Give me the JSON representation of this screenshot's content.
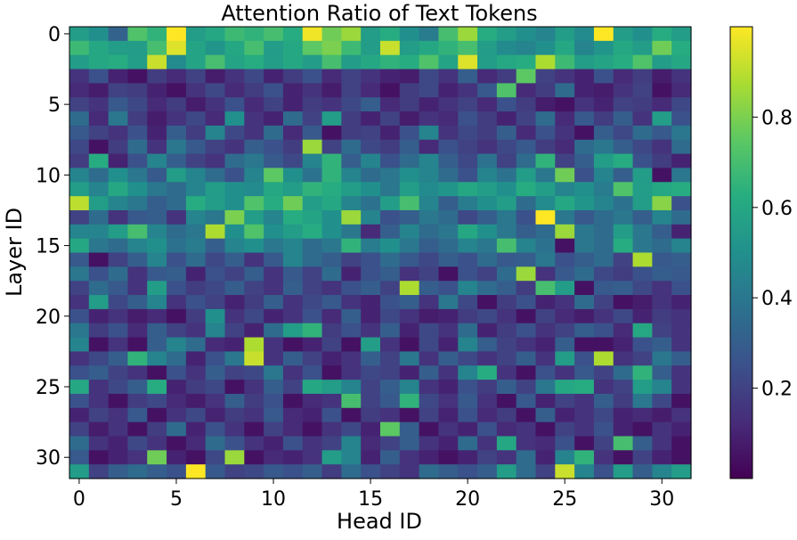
{
  "chart_data": {
    "type": "heatmap",
    "title": "Attention Ratio of Text Tokens",
    "xlabel": "Head ID",
    "ylabel": "Layer ID",
    "xticks": [
      0,
      5,
      10,
      15,
      20,
      25,
      30
    ],
    "yticks": [
      0,
      5,
      10,
      15,
      20,
      25,
      30
    ],
    "n_heads": 32,
    "n_layers": 32,
    "colormap": "viridis",
    "colorbar_ticks": [
      "0.2",
      "0.4",
      "0.6",
      "0.8"
    ],
    "colorbar_values": [
      0.2,
      0.4,
      0.6,
      0.8
    ],
    "vmin": 0.0,
    "vmax": 1.0,
    "values": [
      [
        0.55,
        0.5,
        0.32,
        0.72,
        0.65,
        1.0,
        0.55,
        0.6,
        0.68,
        0.65,
        0.7,
        0.62,
        0.98,
        0.78,
        0.85,
        0.55,
        0.62,
        0.5,
        0.42,
        0.7,
        0.85,
        0.62,
        0.55,
        0.5,
        0.45,
        0.55,
        0.48,
        1.0,
        0.55,
        0.5,
        0.62,
        0.55
      ],
      [
        0.68,
        0.6,
        0.55,
        0.55,
        0.7,
        0.95,
        0.58,
        0.52,
        0.6,
        0.7,
        0.55,
        0.6,
        0.75,
        0.8,
        0.68,
        0.55,
        0.92,
        0.55,
        0.6,
        0.65,
        0.7,
        0.55,
        0.48,
        0.45,
        0.5,
        0.6,
        0.45,
        0.52,
        0.6,
        0.55,
        0.78,
        0.62
      ],
      [
        0.55,
        0.6,
        0.62,
        0.55,
        0.92,
        0.48,
        0.58,
        0.7,
        0.58,
        0.62,
        0.55,
        0.6,
        0.55,
        0.7,
        0.55,
        0.6,
        0.65,
        0.62,
        0.72,
        0.58,
        0.95,
        0.55,
        0.6,
        0.62,
        0.88,
        0.68,
        0.55,
        0.58,
        0.62,
        0.72,
        0.55,
        0.6
      ],
      [
        0.15,
        0.25,
        0.1,
        0.05,
        0.18,
        0.12,
        0.2,
        0.08,
        0.15,
        0.22,
        0.1,
        0.18,
        0.25,
        0.12,
        0.2,
        0.15,
        0.1,
        0.08,
        0.22,
        0.15,
        0.3,
        0.12,
        0.18,
        0.75,
        0.2,
        0.15,
        0.1,
        0.25,
        0.12,
        0.18,
        0.08,
        0.15
      ],
      [
        0.12,
        0.08,
        0.2,
        0.18,
        0.1,
        0.05,
        0.15,
        0.22,
        0.12,
        0.18,
        0.25,
        0.1,
        0.15,
        0.08,
        0.2,
        0.12,
        0.05,
        0.18,
        0.22,
        0.1,
        0.15,
        0.28,
        0.72,
        0.12,
        0.18,
        0.35,
        0.1,
        0.08,
        0.15,
        0.2,
        0.05,
        0.12
      ],
      [
        0.2,
        0.15,
        0.28,
        0.22,
        0.12,
        0.18,
        0.08,
        0.15,
        0.25,
        0.12,
        0.2,
        0.1,
        0.18,
        0.15,
        0.22,
        0.3,
        0.12,
        0.18,
        0.1,
        0.15,
        0.2,
        0.12,
        0.25,
        0.18,
        0.08,
        0.05,
        0.15,
        0.1,
        0.2,
        0.18,
        0.12,
        0.22
      ],
      [
        0.35,
        0.12,
        0.4,
        0.18,
        0.08,
        0.15,
        0.22,
        0.12,
        0.5,
        0.15,
        0.1,
        0.35,
        0.2,
        0.55,
        0.18,
        0.1,
        0.2,
        0.08,
        0.15,
        0.12,
        0.25,
        0.18,
        0.1,
        0.2,
        0.35,
        0.12,
        0.28,
        0.18,
        0.3,
        0.15,
        0.55,
        0.25
      ],
      [
        0.28,
        0.2,
        0.15,
        0.25,
        0.1,
        0.3,
        0.18,
        0.45,
        0.22,
        0.15,
        0.35,
        0.12,
        0.28,
        0.05,
        0.18,
        0.2,
        0.1,
        0.25,
        0.45,
        0.15,
        0.22,
        0.18,
        0.3,
        0.12,
        0.25,
        0.15,
        0.05,
        0.3,
        0.22,
        0.35,
        0.28,
        0.4
      ],
      [
        0.22,
        0.05,
        0.18,
        0.35,
        0.15,
        0.4,
        0.28,
        0.2,
        0.15,
        0.3,
        0.25,
        0.18,
        0.85,
        0.2,
        0.35,
        0.22,
        0.18,
        0.3,
        0.12,
        0.25,
        0.2,
        0.15,
        0.22,
        0.28,
        0.18,
        0.12,
        0.35,
        0.4,
        0.3,
        0.22,
        0.15,
        0.35
      ],
      [
        0.18,
        0.62,
        0.1,
        0.25,
        0.45,
        0.3,
        0.2,
        0.15,
        0.35,
        0.4,
        0.28,
        0.22,
        0.45,
        0.65,
        0.3,
        0.45,
        0.25,
        0.35,
        0.45,
        0.3,
        0.22,
        0.38,
        0.2,
        0.35,
        0.65,
        0.2,
        0.3,
        0.55,
        0.62,
        0.25,
        0.18,
        0.1
      ],
      [
        0.45,
        0.35,
        0.5,
        0.4,
        0.28,
        0.55,
        0.45,
        0.35,
        0.25,
        0.45,
        0.75,
        0.5,
        0.38,
        0.65,
        0.45,
        0.35,
        0.4,
        0.5,
        0.45,
        0.35,
        0.25,
        0.45,
        0.38,
        0.55,
        0.4,
        0.78,
        0.25,
        0.45,
        0.3,
        0.55,
        0.05,
        0.4
      ],
      [
        0.55,
        0.45,
        0.6,
        0.5,
        0.4,
        0.35,
        0.45,
        0.55,
        0.5,
        0.48,
        0.6,
        0.55,
        0.65,
        0.62,
        0.55,
        0.5,
        0.4,
        0.55,
        0.48,
        0.52,
        0.6,
        0.55,
        0.5,
        0.62,
        0.55,
        0.45,
        0.5,
        0.42,
        0.72,
        0.55,
        0.6,
        0.62
      ],
      [
        0.9,
        0.55,
        0.45,
        0.4,
        0.3,
        0.35,
        0.62,
        0.55,
        0.5,
        0.72,
        0.62,
        0.78,
        0.55,
        0.6,
        0.45,
        0.38,
        0.55,
        0.7,
        0.45,
        0.3,
        0.42,
        0.5,
        0.55,
        0.35,
        0.48,
        0.6,
        0.52,
        0.45,
        0.38,
        0.55,
        0.82,
        0.25
      ],
      [
        0.2,
        0.35,
        0.15,
        0.28,
        0.3,
        0.15,
        0.45,
        0.4,
        0.8,
        0.55,
        0.45,
        0.62,
        0.58,
        0.5,
        0.85,
        0.45,
        0.25,
        0.3,
        0.4,
        0.35,
        0.22,
        0.3,
        0.4,
        0.25,
        1.0,
        0.4,
        0.28,
        0.35,
        0.4,
        0.3,
        0.45,
        0.35
      ],
      [
        0.45,
        0.45,
        0.55,
        0.7,
        0.45,
        0.35,
        0.4,
        0.88,
        0.5,
        0.72,
        0.5,
        0.55,
        0.62,
        0.5,
        0.4,
        0.12,
        0.3,
        0.45,
        0.35,
        0.4,
        0.6,
        0.5,
        0.4,
        0.3,
        0.35,
        0.85,
        0.4,
        0.35,
        0.55,
        0.4,
        0.3,
        0.1
      ],
      [
        0.6,
        0.4,
        0.35,
        0.45,
        0.5,
        0.38,
        0.42,
        0.3,
        0.45,
        0.5,
        0.4,
        0.45,
        0.35,
        0.4,
        0.65,
        0.42,
        0.5,
        0.4,
        0.3,
        0.35,
        0.45,
        0.4,
        0.7,
        0.45,
        0.38,
        0.05,
        0.4,
        0.35,
        0.62,
        0.4,
        0.35,
        0.45
      ],
      [
        0.28,
        0.05,
        0.2,
        0.3,
        0.45,
        0.25,
        0.35,
        0.22,
        0.3,
        0.15,
        0.28,
        0.45,
        0.35,
        0.3,
        0.2,
        0.25,
        0.35,
        0.28,
        0.22,
        0.3,
        0.25,
        0.35,
        0.28,
        0.3,
        0.4,
        0.25,
        0.3,
        0.35,
        0.2,
        0.88,
        0.28,
        0.3
      ],
      [
        0.4,
        0.25,
        0.35,
        0.15,
        0.28,
        0.3,
        0.1,
        0.25,
        0.2,
        0.3,
        0.15,
        0.28,
        0.2,
        0.35,
        0.1,
        0.25,
        0.3,
        0.15,
        0.2,
        0.05,
        0.25,
        0.2,
        0.35,
        0.85,
        0.15,
        0.28,
        0.35,
        0.22,
        0.18,
        0.25,
        0.3,
        0.28
      ],
      [
        0.2,
        0.35,
        0.28,
        0.15,
        0.55,
        0.25,
        0.18,
        0.22,
        0.3,
        0.2,
        0.15,
        0.3,
        0.2,
        0.15,
        0.25,
        0.3,
        0.2,
        0.88,
        0.3,
        0.25,
        0.45,
        0.35,
        0.3,
        0.18,
        0.7,
        0.55,
        0.05,
        0.28,
        0.3,
        0.22,
        0.15,
        0.25
      ],
      [
        0.15,
        0.55,
        0.22,
        0.3,
        0.45,
        0.15,
        0.25,
        0.2,
        0.1,
        0.18,
        0.3,
        0.15,
        0.22,
        0.28,
        0.15,
        0.1,
        0.25,
        0.3,
        0.15,
        0.4,
        0.22,
        0.05,
        0.18,
        0.25,
        0.1,
        0.15,
        0.35,
        0.2,
        0.05,
        0.08,
        0.15,
        0.1
      ],
      [
        0.25,
        0.1,
        0.15,
        0.08,
        0.12,
        0.05,
        0.18,
        0.5,
        0.15,
        0.22,
        0.1,
        0.15,
        0.25,
        0.12,
        0.3,
        0.1,
        0.22,
        0.15,
        0.08,
        0.1,
        0.18,
        0.22,
        0.15,
        0.05,
        0.2,
        0.12,
        0.08,
        0.15,
        0.22,
        0.1,
        0.18,
        0.15
      ],
      [
        0.4,
        0.18,
        0.25,
        0.12,
        0.3,
        0.2,
        0.15,
        0.45,
        0.2,
        0.1,
        0.35,
        0.55,
        0.65,
        0.18,
        0.25,
        0.15,
        0.3,
        0.1,
        0.22,
        0.15,
        0.35,
        0.1,
        0.18,
        0.25,
        0.15,
        0.2,
        0.3,
        0.25,
        0.12,
        0.6,
        0.2,
        0.15
      ],
      [
        0.45,
        0.05,
        0.15,
        0.05,
        0.3,
        0.45,
        0.35,
        0.12,
        0.1,
        0.88,
        0.15,
        0.05,
        0.1,
        0.2,
        0.05,
        0.55,
        0.15,
        0.05,
        0.22,
        0.1,
        0.45,
        0.3,
        0.2,
        0.15,
        0.1,
        0.3,
        0.05,
        0.05,
        0.1,
        0.25,
        0.3,
        0.15
      ],
      [
        0.15,
        0.22,
        0.3,
        0.65,
        0.45,
        0.35,
        0.1,
        0.25,
        0.4,
        0.92,
        0.15,
        0.3,
        0.2,
        0.1,
        0.15,
        0.3,
        0.2,
        0.4,
        0.15,
        0.3,
        0.22,
        0.15,
        0.2,
        0.3,
        0.15,
        0.55,
        0.25,
        0.88,
        0.15,
        0.2,
        0.4,
        0.3
      ],
      [
        0.25,
        0.3,
        0.2,
        0.15,
        0.05,
        0.25,
        0.15,
        0.3,
        0.2,
        0.22,
        0.4,
        0.15,
        0.25,
        0.05,
        0.15,
        0.22,
        0.2,
        0.1,
        0.3,
        0.15,
        0.45,
        0.62,
        0.15,
        0.05,
        0.25,
        0.15,
        0.28,
        0.2,
        0.35,
        0.65,
        0.3,
        0.15
      ],
      [
        0.6,
        0.15,
        0.22,
        0.3,
        0.62,
        0.1,
        0.18,
        0.22,
        0.05,
        0.15,
        0.3,
        0.2,
        0.6,
        0.55,
        0.45,
        0.2,
        0.3,
        0.45,
        0.15,
        0.1,
        0.25,
        0.18,
        0.3,
        0.2,
        0.4,
        0.6,
        0.62,
        0.15,
        0.2,
        0.55,
        0.45,
        0.15
      ],
      [
        0.25,
        0.15,
        0.05,
        0.18,
        0.22,
        0.12,
        0.08,
        0.15,
        0.3,
        0.18,
        0.25,
        0.05,
        0.12,
        0.15,
        0.7,
        0.2,
        0.28,
        0.65,
        0.22,
        0.15,
        0.28,
        0.15,
        0.05,
        0.28,
        0.1,
        0.2,
        0.15,
        0.3,
        0.18,
        0.4,
        0.22,
        0.05
      ],
      [
        0.1,
        0.2,
        0.15,
        0.28,
        0.05,
        0.15,
        0.22,
        0.1,
        0.18,
        0.15,
        0.28,
        0.12,
        0.1,
        0.25,
        0.05,
        0.18,
        0.15,
        0.05,
        0.2,
        0.1,
        0.25,
        0.12,
        0.18,
        0.05,
        0.3,
        0.1,
        0.15,
        0.22,
        0.1,
        0.12,
        0.08,
        0.15
      ],
      [
        0.2,
        0.08,
        0.15,
        0.05,
        0.18,
        0.35,
        0.1,
        0.25,
        0.15,
        0.05,
        0.2,
        0.12,
        0.05,
        0.15,
        0.22,
        0.1,
        0.75,
        0.3,
        0.05,
        0.15,
        0.1,
        0.25,
        0.12,
        0.15,
        0.05,
        0.2,
        0.15,
        0.25,
        0.1,
        0.05,
        0.15,
        0.1
      ],
      [
        0.35,
        0.15,
        0.1,
        0.22,
        0.15,
        0.05,
        0.12,
        0.35,
        0.25,
        0.15,
        0.1,
        0.25,
        0.15,
        0.2,
        0.45,
        0.12,
        0.2,
        0.3,
        0.15,
        0.1,
        0.35,
        0.15,
        0.6,
        0.15,
        0.12,
        0.25,
        0.05,
        0.2,
        0.7,
        0.3,
        0.15,
        0.05
      ],
      [
        0.28,
        0.05,
        0.1,
        0.15,
        0.78,
        0.1,
        0.05,
        0.22,
        0.85,
        0.05,
        0.12,
        0.1,
        0.15,
        0.55,
        0.45,
        0.1,
        0.3,
        0.15,
        0.1,
        0.05,
        0.1,
        0.2,
        0.15,
        0.35,
        0.1,
        0.45,
        0.65,
        0.15,
        0.05,
        0.2,
        0.1,
        0.05
      ],
      [
        0.55,
        0.2,
        0.3,
        0.35,
        0.3,
        0.25,
        1.0,
        0.28,
        0.2,
        0.22,
        0.28,
        0.25,
        0.3,
        0.18,
        0.35,
        0.25,
        0.2,
        0.15,
        0.35,
        0.3,
        0.25,
        0.3,
        0.55,
        0.35,
        0.2,
        0.92,
        0.45,
        0.25,
        0.55,
        0.3,
        0.45,
        0.55
      ]
    ]
  }
}
